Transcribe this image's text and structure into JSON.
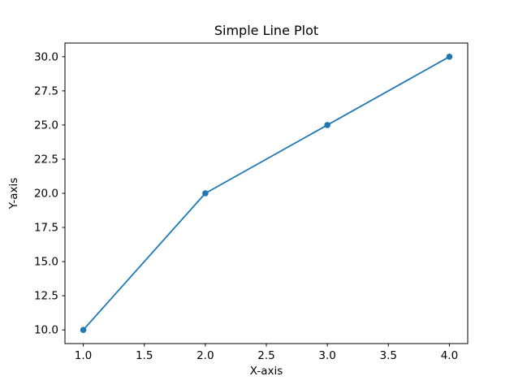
{
  "chart_data": {
    "type": "line",
    "title": "Simple Line Plot",
    "xlabel": "X-axis",
    "ylabel": "Y-axis",
    "x": [
      1,
      2,
      3,
      4
    ],
    "y": [
      10,
      20,
      25,
      30
    ],
    "series": [
      {
        "name": "line",
        "x": [
          1,
          2,
          3,
          4
        ],
        "y": [
          10,
          20,
          25,
          30
        ]
      }
    ],
    "xlim": [
      0.85,
      4.15
    ],
    "ylim": [
      9,
      31
    ],
    "x_ticks": [
      1.0,
      1.5,
      2.0,
      2.5,
      3.0,
      3.5,
      4.0
    ],
    "x_tick_labels": [
      "1.0",
      "1.5",
      "2.0",
      "2.5",
      "3.0",
      "3.5",
      "4.0"
    ],
    "y_ticks": [
      10.0,
      12.5,
      15.0,
      17.5,
      20.0,
      22.5,
      25.0,
      27.5,
      30.0
    ],
    "y_tick_labels": [
      "10.0",
      "12.5",
      "15.0",
      "17.5",
      "20.0",
      "22.5",
      "25.0",
      "27.5",
      "30.0"
    ],
    "line_color": "#1f77b4",
    "marker": "circle",
    "marker_color": "#1f77b4",
    "frame_color": "#000000",
    "background_color": "#ffffff",
    "grid": false,
    "legend": null
  }
}
